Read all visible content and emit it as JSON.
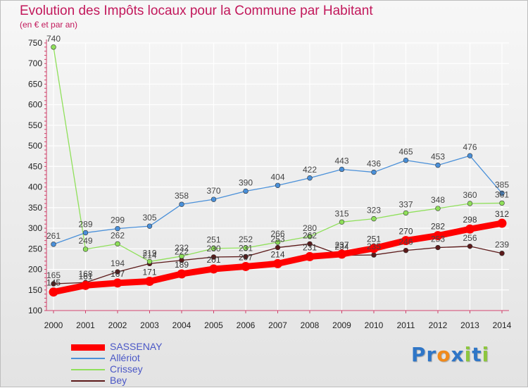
{
  "chart_data": {
    "type": "line",
    "title": "Evolution des Impôts locaux pour la Commune par Habitant",
    "subtitle": "(en € et par an)",
    "xlabel": "",
    "ylabel": "",
    "ylim": [
      100,
      750
    ],
    "yticks": [
      100,
      150,
      200,
      250,
      300,
      350,
      400,
      450,
      500,
      550,
      600,
      650,
      700,
      750
    ],
    "categories": [
      "2000",
      "2001",
      "2002",
      "2003",
      "2004",
      "2005",
      "2006",
      "2007",
      "2008",
      "2009",
      "2010",
      "2011",
      "2012",
      "2013",
      "2014"
    ],
    "grid": true,
    "legend_position": "bottom-left",
    "series": [
      {
        "name": "Bey",
        "color": "#5c1a1a",
        "values": [
          165,
          168,
          194,
          214,
          222,
          230,
          231,
          253,
          262,
          234,
          235,
          246,
          253,
          256,
          239
        ],
        "labels": [
          "165",
          "168",
          "194",
          "214",
          "222",
          "230",
          "231",
          "253",
          "262",
          "234",
          "235",
          "246",
          "253",
          "256",
          "239"
        ]
      },
      {
        "name": "Crissey",
        "color": "#8fe05a",
        "values": [
          740,
          249,
          262,
          219,
          232,
          251,
          252,
          266,
          280,
          315,
          323,
          337,
          348,
          360,
          361
        ],
        "labels": [
          "740",
          "249",
          "262",
          "219",
          "232",
          "251",
          "252",
          "266",
          "280",
          "315",
          "323",
          "337",
          "348",
          "360",
          "361"
        ]
      },
      {
        "name": "Allériot",
        "color": "#4a90d9",
        "values": [
          261,
          289,
          299,
          305,
          358,
          370,
          390,
          404,
          422,
          443,
          436,
          465,
          453,
          476,
          385
        ],
        "labels": [
          "261",
          "289",
          "299",
          "305",
          "358",
          "370",
          "390",
          "404",
          "422",
          "443",
          "436",
          "465",
          "453",
          "476",
          "385"
        ]
      },
      {
        "name": "SASSENAY",
        "color": "#ff0000",
        "values": [
          145,
          161,
          167,
          171,
          189,
          201,
          207,
          214,
          231,
          237,
          251,
          270,
          282,
          298,
          312
        ],
        "labels": [
          "145",
          "161",
          "167",
          "171",
          "189",
          "201",
          "207",
          "214",
          "231",
          "237",
          "251",
          "270",
          "282",
          "298",
          "312"
        ]
      }
    ],
    "legend": [
      {
        "name": "SASSENAY",
        "color": "#ff0000",
        "thick": true
      },
      {
        "name": "Allériot",
        "color": "#4a90d9",
        "thick": false
      },
      {
        "name": "Crissey",
        "color": "#8fe05a",
        "thick": false
      },
      {
        "name": "Bey",
        "color": "#5c1a1a",
        "thick": false
      }
    ]
  },
  "logo": {
    "parts": [
      {
        "text": "Pr",
        "color": "#2f76c7"
      },
      {
        "text": "o",
        "color": "#f08a1c"
      },
      {
        "text": "x",
        "color": "#2f76c7"
      },
      {
        "text": "i",
        "color": "#8dc63f"
      },
      {
        "text": "t",
        "color": "#2f76c7"
      },
      {
        "text": "i",
        "color": "#8dc63f"
      }
    ]
  }
}
